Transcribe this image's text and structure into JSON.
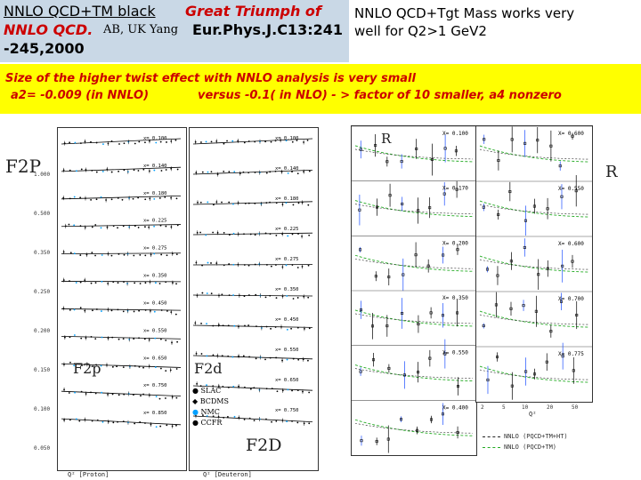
{
  "header": {
    "line1_black": "NNLO QCD+TM black",
    "line1_red": "Great Triumph of",
    "line2_red": "NNLO QCD.",
    "line2_authors": "AB, UK Yang",
    "line2_journal": "Eur.Phys.J.C13:241",
    "line3": "-245,2000",
    "right_line1": "NNLO QCD+Tgt Mass works very",
    "right_line2": "well for Q2>1 GeV2"
  },
  "banner": {
    "line1": "Size of the higher twist effect with NNLO analysis is very small",
    "line2_a": "a2= -0.009 (in NNLO)",
    "line2_b": "versus -0.1( in NLO) - > factor of 10 smaller, a4 nonzero"
  },
  "left_figure": {
    "label_f2p": "F2P",
    "label_f2d": "F2D",
    "inner_f2p": "F2p",
    "inner_f2d": "F2d",
    "xlabel_proton": "Q² [Proton]",
    "xlabel_deuteron": "Q² [Deuteron]",
    "legend": [
      "SLAC",
      "BCDMS",
      "NMC",
      "CCFR"
    ],
    "proton_bins": [
      "x= 0.100",
      "x= 0.140",
      "x= 0.180",
      "x= 0.225",
      "x= 0.275",
      "x= 0.350",
      "x= 0.450",
      "x= 0.550",
      "x= 0.650",
      "x= 0.750",
      "x= 0.850"
    ],
    "deuteron_bins": [
      "x= 0.100",
      "x= 0.140",
      "x= 0.180",
      "x= 0.225",
      "x= 0.275",
      "x= 0.350",
      "x= 0.450",
      "x= 0.550",
      "x= 0.650",
      "x= 0.750"
    ],
    "left_ticks": [
      "1.000",
      "0.500",
      "0.350",
      "0.250",
      "0.200",
      "0.150",
      "0.100",
      "0.050"
    ],
    "series_colors": {
      "data": "#000000",
      "nmc": "#00a0ff",
      "curve": "#000000"
    }
  },
  "right_figure": {
    "label_r": "R",
    "inner_r": "R",
    "bins_left": [
      "X= 0.100",
      "X= 0.170",
      "X= 0.200",
      "X= 0.350",
      "X= 0.550",
      "X= 0.400"
    ],
    "bins_right": [
      "X= 0.600",
      "X= 0.550",
      "X= 0.600",
      "X= 0.700",
      "X= 0.775"
    ],
    "xlabel": "Q²",
    "x_ticks": [
      "2",
      "5",
      "10",
      "20",
      "50"
    ],
    "legend_1": "NNLO (PQCD+TM+HT)",
    "legend_2": "NNLO (PQCD+TM)",
    "curve_color": "#22aa22"
  }
}
